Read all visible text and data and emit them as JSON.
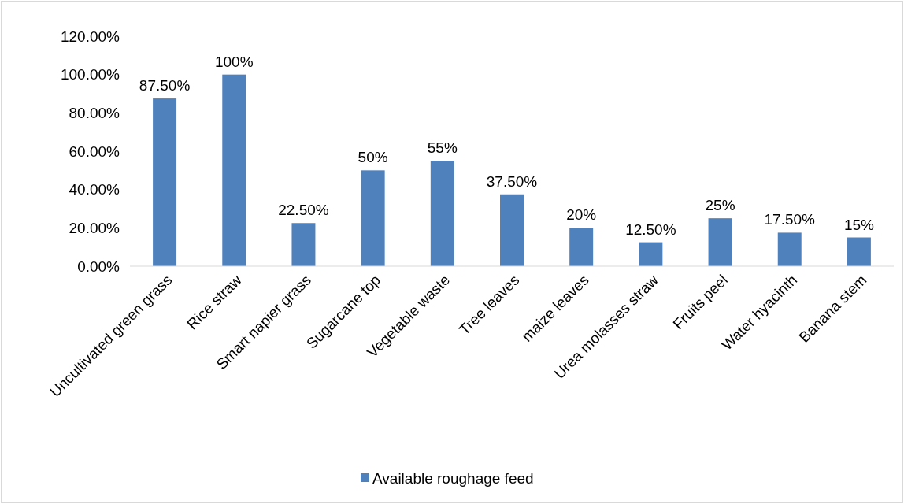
{
  "chart_data": {
    "type": "bar",
    "categories": [
      "Uncultivated green grass",
      "Rice straw",
      "Smart napier grass",
      "Sugarcane top",
      "Vegetable waste",
      "Tree leaves",
      "maize leaves",
      "Urea molasses straw",
      "Fruits peel",
      "Water hyacinth",
      "Banana stem"
    ],
    "series": [
      {
        "name": "Available roughage feed",
        "color": "#4f81bd",
        "values": [
          87.5,
          100,
          22.5,
          50,
          55,
          37.5,
          20,
          12.5,
          25,
          17.5,
          15
        ],
        "value_labels": [
          "87.50%",
          "100%",
          "22.50%",
          "50%",
          "55%",
          "37.50%",
          "20%",
          "12.50%",
          "25%",
          "17.50%",
          "15%"
        ]
      }
    ],
    "ylim": [
      0,
      120
    ],
    "yticks": [
      {
        "value": 0,
        "label": "0.00%"
      },
      {
        "value": 20,
        "label": "20.00%"
      },
      {
        "value": 40,
        "label": "40.00%"
      },
      {
        "value": 60,
        "label": "60.00%"
      },
      {
        "value": 80,
        "label": "80.00%"
      },
      {
        "value": 100,
        "label": "100.00%"
      },
      {
        "value": 120,
        "label": "120.00%"
      }
    ],
    "grid": false,
    "legend": "bottom"
  }
}
